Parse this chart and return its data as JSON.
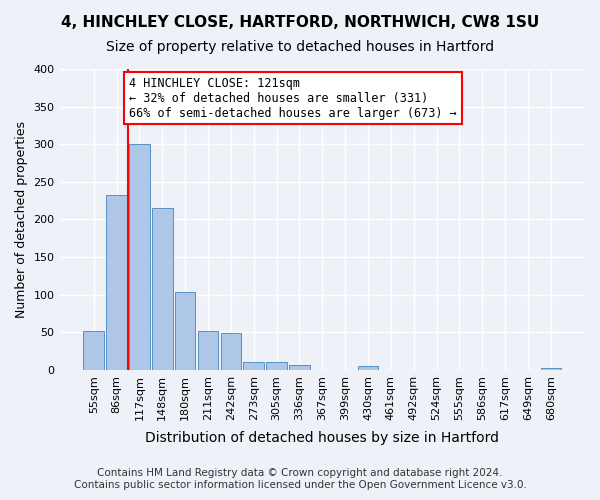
{
  "title1": "4, HINCHLEY CLOSE, HARTFORD, NORTHWICH, CW8 1SU",
  "title2": "Size of property relative to detached houses in Hartford",
  "xlabel": "Distribution of detached houses by size in Hartford",
  "ylabel": "Number of detached properties",
  "categories": [
    "55sqm",
    "86sqm",
    "117sqm",
    "148sqm",
    "180sqm",
    "211sqm",
    "242sqm",
    "273sqm",
    "305sqm",
    "336sqm",
    "367sqm",
    "399sqm",
    "430sqm",
    "461sqm",
    "492sqm",
    "524sqm",
    "555sqm",
    "586sqm",
    "617sqm",
    "649sqm",
    "680sqm"
  ],
  "values": [
    52,
    232,
    300,
    215,
    103,
    52,
    49,
    10,
    10,
    7,
    0,
    0,
    5,
    0,
    0,
    0,
    0,
    0,
    0,
    0,
    3
  ],
  "bar_color": "#aec6e8",
  "bar_edge_color": "#5591c5",
  "vline_x": 1.5,
  "annotation_text": "4 HINCHLEY CLOSE: 121sqm\n← 32% of detached houses are smaller (331)\n66% of semi-detached houses are larger (673) →",
  "annotation_box_color": "white",
  "annotation_box_edge_color": "red",
  "vline_color": "red",
  "ylim": [
    0,
    400
  ],
  "yticks": [
    0,
    50,
    100,
    150,
    200,
    250,
    300,
    350,
    400
  ],
  "background_color": "#eef2f8",
  "grid_color": "white",
  "footer_line1": "Contains HM Land Registry data © Crown copyright and database right 2024.",
  "footer_line2": "Contains public sector information licensed under the Open Government Licence v3.0.",
  "title1_fontsize": 11,
  "title2_fontsize": 10,
  "xlabel_fontsize": 10,
  "ylabel_fontsize": 9,
  "tick_fontsize": 8,
  "annotation_fontsize": 8.5,
  "footer_fontsize": 7.5
}
